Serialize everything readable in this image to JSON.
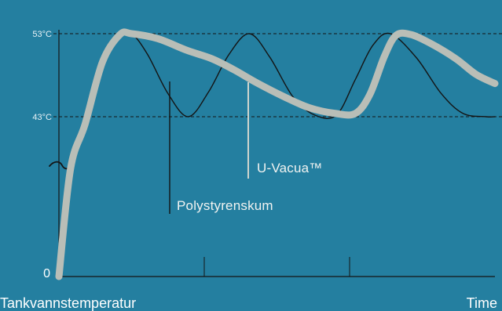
{
  "colors": {
    "background": "#247fa0",
    "axis": "#141414",
    "guide": "#141414",
    "polystyrene_curve": "#141414",
    "u_vacua_curve": "#b9beb7",
    "u_vacua_leader": "#cfd5ce",
    "polystyrene_leader": "#141414",
    "text": "#ffffff"
  },
  "chart_data": {
    "type": "line",
    "title": "",
    "xlabel": "Time",
    "ylabel": "Tankvannstemperatur",
    "x_range": [
      0,
      3
    ],
    "y_axis": {
      "ticks": [
        {
          "label": "0",
          "value": 0
        },
        {
          "label": "43°C",
          "value": 43
        },
        {
          "label": "53°C",
          "value": 53
        }
      ],
      "break": true,
      "broken_range": [
        0,
        43
      ]
    },
    "x_ticks": [
      1,
      2
    ],
    "reference_lines": [
      {
        "label": "53°C",
        "value": 53,
        "style": "dashed"
      },
      {
        "label": "43°C",
        "value": 43,
        "style": "dashed"
      }
    ],
    "annotations": [
      {
        "text": "U-Vacua™",
        "series": "U-Vacua™"
      },
      {
        "text": "Polystyrenskum",
        "series": "Polystyrenskum"
      }
    ],
    "series": [
      {
        "name": "Polystyrenskum",
        "style": "thin",
        "points": [
          [
            0.0,
            0.0
          ],
          [
            0.08,
            28.0
          ],
          [
            0.18,
            40.0
          ],
          [
            0.3,
            49.0
          ],
          [
            0.42,
            52.5
          ],
          [
            0.5,
            53.0
          ],
          [
            0.61,
            50.5
          ],
          [
            0.75,
            45.8
          ],
          [
            0.89,
            43.0
          ],
          [
            1.03,
            46.0
          ],
          [
            1.17,
            50.5
          ],
          [
            1.31,
            53.0
          ],
          [
            1.45,
            50.2
          ],
          [
            1.61,
            45.4
          ],
          [
            1.76,
            43.2
          ],
          [
            1.91,
            43.2
          ],
          [
            2.04,
            47.5
          ],
          [
            2.16,
            51.6
          ],
          [
            2.28,
            53.0
          ],
          [
            2.46,
            50.1
          ],
          [
            2.63,
            45.8
          ],
          [
            2.78,
            43.4
          ],
          [
            2.94,
            43.0
          ],
          [
            3.0,
            43.0
          ]
        ]
      },
      {
        "name": "U-Vacua™",
        "style": "thick",
        "points": [
          [
            0.0,
            0.0
          ],
          [
            0.08,
            29.0
          ],
          [
            0.18,
            41.0
          ],
          [
            0.3,
            49.6
          ],
          [
            0.42,
            52.9
          ],
          [
            0.5,
            53.0
          ],
          [
            0.68,
            52.4
          ],
          [
            0.88,
            51.0
          ],
          [
            1.05,
            50.0
          ],
          [
            1.2,
            48.7
          ],
          [
            1.36,
            47.1
          ],
          [
            1.55,
            45.4
          ],
          [
            1.72,
            44.1
          ],
          [
            1.9,
            43.4
          ],
          [
            2.04,
            43.4
          ],
          [
            2.14,
            45.7
          ],
          [
            2.24,
            50.3
          ],
          [
            2.32,
            52.8
          ],
          [
            2.42,
            52.9
          ],
          [
            2.56,
            51.8
          ],
          [
            2.73,
            50.0
          ],
          [
            2.87,
            48.1
          ],
          [
            3.0,
            47.0
          ]
        ]
      }
    ]
  }
}
